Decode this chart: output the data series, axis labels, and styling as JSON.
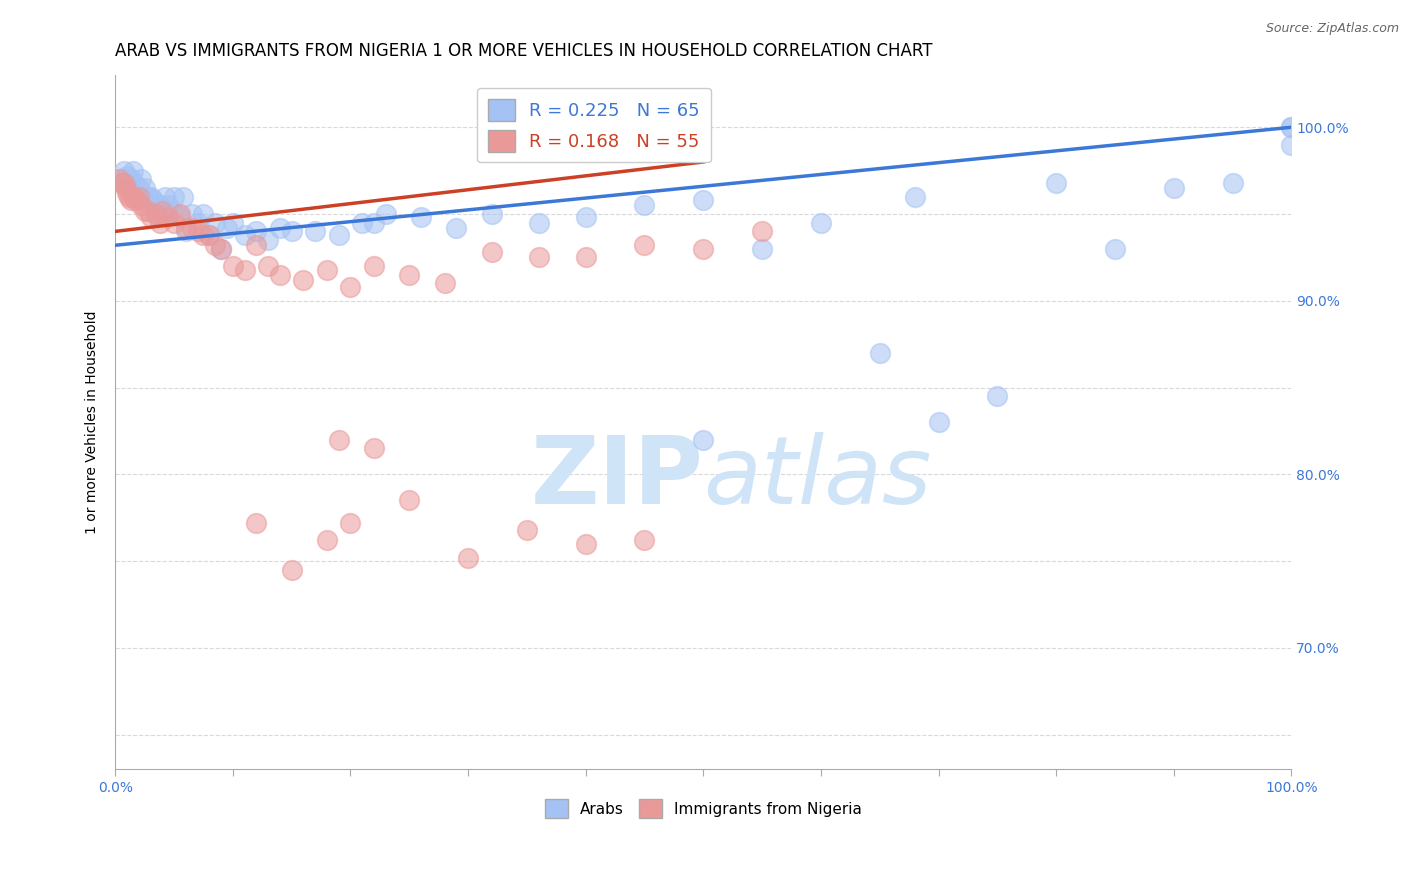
{
  "title": "ARAB VS IMMIGRANTS FROM NIGERIA 1 OR MORE VEHICLES IN HOUSEHOLD CORRELATION CHART",
  "source_text": "Source: ZipAtlas.com",
  "ylabel": "1 or more Vehicles in Household",
  "xlim": [
    0.0,
    1.0
  ],
  "ylim": [
    0.63,
    1.03
  ],
  "legend_blue_r": "R = 0.225",
  "legend_blue_n": "N = 65",
  "legend_pink_r": "R = 0.168",
  "legend_pink_n": "N = 55",
  "blue_color": "#a4c2f4",
  "pink_color": "#ea9999",
  "blue_line_color": "#3c78d8",
  "pink_line_color": "#cc4125",
  "watermark_color": "#d0e4f7",
  "grid_color": "#d9d9d9",
  "background_color": "#ffffff",
  "title_fontsize": 12,
  "axis_label_fontsize": 10,
  "tick_fontsize": 10,
  "legend_fontsize": 13,
  "blue_x": [
    0.005,
    0.007,
    0.009,
    0.01,
    0.012,
    0.013,
    0.015,
    0.016,
    0.018,
    0.02,
    0.022,
    0.024,
    0.025,
    0.028,
    0.03,
    0.032,
    0.035,
    0.038,
    0.04,
    0.042,
    0.045,
    0.048,
    0.05,
    0.055,
    0.058,
    0.06,
    0.065,
    0.07,
    0.075,
    0.08,
    0.085,
    0.09,
    0.095,
    0.1,
    0.11,
    0.12,
    0.13,
    0.14,
    0.15,
    0.17,
    0.19,
    0.21,
    0.23,
    0.26,
    0.29,
    0.32,
    0.36,
    0.4,
    0.45,
    0.5,
    0.55,
    0.6,
    0.65,
    0.7,
    0.75,
    0.8,
    0.85,
    0.9,
    0.95,
    1.0,
    1.0,
    1.0,
    0.5,
    0.68,
    0.22
  ],
  "blue_y": [
    0.97,
    0.975,
    0.968,
    0.972,
    0.965,
    0.97,
    0.975,
    0.968,
    0.96,
    0.965,
    0.97,
    0.958,
    0.965,
    0.96,
    0.96,
    0.958,
    0.95,
    0.955,
    0.95,
    0.96,
    0.955,
    0.952,
    0.96,
    0.948,
    0.96,
    0.94,
    0.95,
    0.945,
    0.95,
    0.938,
    0.945,
    0.93,
    0.942,
    0.945,
    0.938,
    0.94,
    0.935,
    0.942,
    0.94,
    0.94,
    0.938,
    0.945,
    0.95,
    0.948,
    0.942,
    0.95,
    0.945,
    0.948,
    0.955,
    0.958,
    0.93,
    0.945,
    0.87,
    0.83,
    0.845,
    0.968,
    0.93,
    0.965,
    0.968,
    1.0,
    0.99,
    1.0,
    0.82,
    0.96,
    0.945
  ],
  "pink_x": [
    0.003,
    0.005,
    0.007,
    0.009,
    0.01,
    0.012,
    0.013,
    0.015,
    0.018,
    0.02,
    0.022,
    0.025,
    0.028,
    0.03,
    0.035,
    0.038,
    0.04,
    0.045,
    0.05,
    0.055,
    0.06,
    0.065,
    0.07,
    0.075,
    0.08,
    0.085,
    0.09,
    0.1,
    0.11,
    0.12,
    0.13,
    0.14,
    0.16,
    0.18,
    0.2,
    0.22,
    0.25,
    0.28,
    0.32,
    0.36,
    0.4,
    0.45,
    0.5,
    0.55,
    0.19,
    0.22,
    0.25,
    0.3,
    0.35,
    0.4,
    0.45,
    0.12,
    0.15,
    0.18,
    0.2
  ],
  "pink_y": [
    0.97,
    0.968,
    0.968,
    0.965,
    0.962,
    0.96,
    0.958,
    0.96,
    0.958,
    0.96,
    0.955,
    0.952,
    0.952,
    0.948,
    0.95,
    0.945,
    0.952,
    0.948,
    0.945,
    0.95,
    0.942,
    0.942,
    0.94,
    0.938,
    0.938,
    0.932,
    0.93,
    0.92,
    0.918,
    0.932,
    0.92,
    0.915,
    0.912,
    0.918,
    0.908,
    0.92,
    0.915,
    0.91,
    0.928,
    0.925,
    0.925,
    0.932,
    0.93,
    0.94,
    0.82,
    0.815,
    0.785,
    0.752,
    0.768,
    0.76,
    0.762,
    0.772,
    0.745,
    0.762,
    0.772
  ],
  "blue_line_x": [
    0.0,
    1.0
  ],
  "blue_line_y": [
    0.932,
    1.0
  ],
  "pink_line_x": [
    0.0,
    0.5
  ],
  "pink_line_y": [
    0.94,
    0.98
  ]
}
